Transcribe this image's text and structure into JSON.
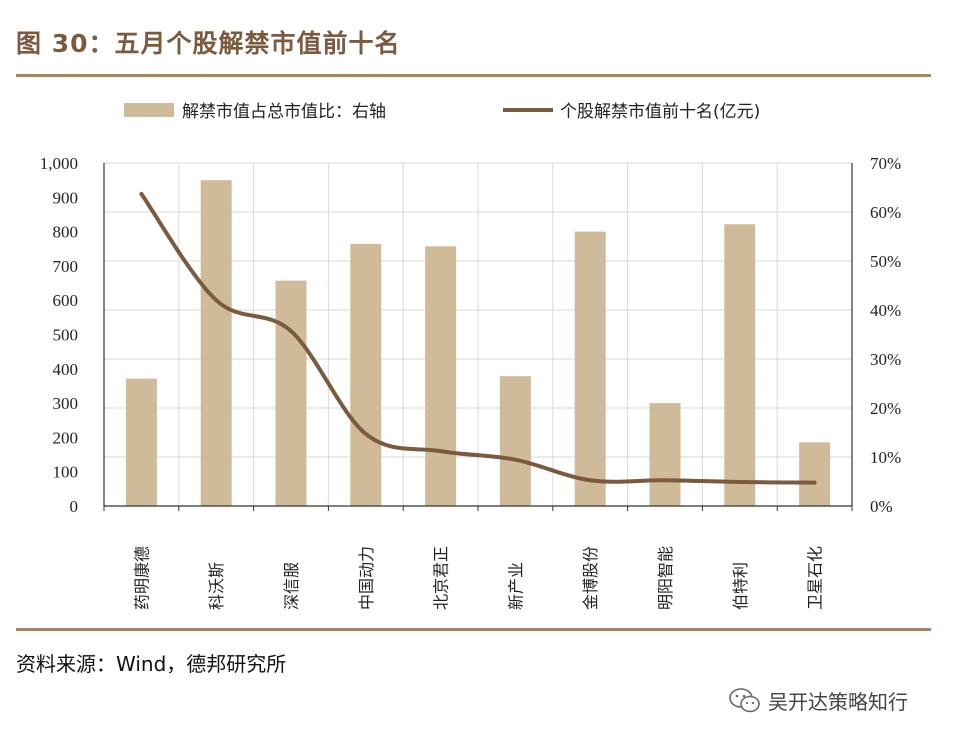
{
  "header": {
    "title": "图 30：五月个股解禁市值前十名"
  },
  "footer": {
    "source": "资料来源：Wind，德邦研究所"
  },
  "watermark": {
    "text": "吴开达策略知行",
    "icon": "wechat-icon"
  },
  "colors": {
    "bar": "#CFBB9A",
    "line": "#7B5A3E",
    "rule": "#A88461",
    "grid": "#D9D9D9",
    "title": "#7B5A3E"
  },
  "chart_data": {
    "type": "bar",
    "categories": [
      "药明康德",
      "科沃斯",
      "深信服",
      "中国动力",
      "北京君正",
      "新产业",
      "金博股份",
      "明阳智能",
      "伯特利",
      "卫星石化"
    ],
    "series": [
      {
        "name": "解禁市值占总市值比：右轴",
        "type": "bar",
        "axis": "right",
        "values": [
          26,
          66.5,
          46,
          53.5,
          53,
          26.5,
          56,
          21,
          57.5,
          13
        ]
      },
      {
        "name": "个股解禁市值前十名(亿元)",
        "type": "line",
        "axis": "left",
        "values": [
          910,
          600,
          510,
          210,
          160,
          135,
          75,
          75,
          70,
          68
        ]
      }
    ],
    "y_left": {
      "min": 0,
      "max": 1000,
      "ticks": [
        "0",
        "100",
        "200",
        "300",
        "400",
        "500",
        "600",
        "700",
        "800",
        "900",
        "1,000"
      ]
    },
    "y_right": {
      "min": 0,
      "max": 70,
      "ticks": [
        "0%",
        "10%",
        "20%",
        "30%",
        "40%",
        "50%",
        "60%",
        "70%"
      ]
    },
    "grid": true,
    "legend": "top"
  }
}
